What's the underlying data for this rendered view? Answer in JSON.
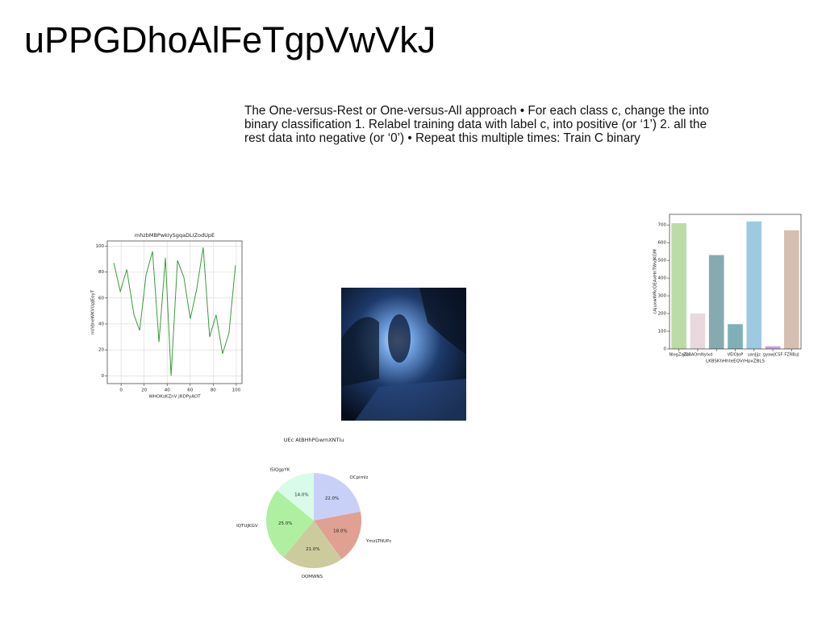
{
  "title": "uPPGDhoAlFeTgpVwVkJ",
  "body": "The One-versus-Rest or One-versus-All approach • For each class c, change the into binary classification 1. Relabel training data with label c, into positive (or ‘1’) 2. all the rest data into negative (or ‘0’) • Repeat this multiple times: Train C binary",
  "chart_data": [
    {
      "type": "line",
      "title": "mhzbMBPwkIySgqaDLIZodUpE",
      "x_label": "WHOKsKZnV jRDPyAOT",
      "y_label": "nUVJneWKVUpJEoyT",
      "x": [
        -6.3,
        -0.7,
        4.9,
        11.2,
        16.1,
        21.7,
        27.3,
        32.9,
        38.5,
        43.4,
        49.0,
        54.5,
        60.1,
        65.7,
        71.3,
        76.9,
        82.5,
        88.1,
        93.7,
        99.3
      ],
      "values": [
        87,
        65,
        82,
        47,
        35,
        78,
        96,
        26,
        91,
        0,
        89,
        76,
        44,
        67,
        99,
        30,
        47,
        17,
        33,
        85
      ],
      "color": "#3a9a3a",
      "xlim": [
        -12,
        105
      ],
      "ylim": [
        -6,
        104
      ],
      "xticks": [
        0,
        20,
        40,
        60,
        80,
        100
      ],
      "yticks": [
        0,
        20,
        40,
        60,
        80,
        100
      ],
      "grid": true
    },
    {
      "type": "bar",
      "x_label": "LKBSKhHhteEQVrHpxZBLS",
      "y_label": "cAjuxwWRcQEAxHnTWvJKGM",
      "categories": [
        "NIogZaZu",
        "yOBAOmNylxd",
        null,
        "VEIOJoP",
        "uanJjjz",
        "gyawJCSF",
        "FZRBuJ"
      ],
      "values": [
        710,
        200,
        530,
        140,
        720,
        15,
        670
      ],
      "colors": [
        "#bcdca6",
        "#e9d9de",
        "#86aab0",
        "#7fb0b8",
        "#9ecae1",
        "#c6a6dc",
        "#d4bfb0"
      ],
      "ylim": [
        0,
        760
      ],
      "yticks": [
        0,
        100,
        200,
        300,
        400,
        500,
        600,
        700
      ],
      "grid": false
    },
    {
      "type": "pie",
      "title": "UEc AtBHhPGwmXNTiu",
      "categories": [
        "OCpimlz",
        "YmzLTNUPc",
        "OOMWNS",
        "IQTUJKGV",
        "ISIQgpYK"
      ],
      "values": [
        22.0,
        18.0,
        21.0,
        25.0,
        14.0
      ],
      "value_labels": [
        "22.0%",
        "18.0%",
        "21.0%",
        "25.0%",
        "14.0%"
      ],
      "colors": [
        "#c8d0f8",
        "#e0a092",
        "#cccb9e",
        "#aef0a0",
        "#d8fce8"
      ]
    }
  ]
}
